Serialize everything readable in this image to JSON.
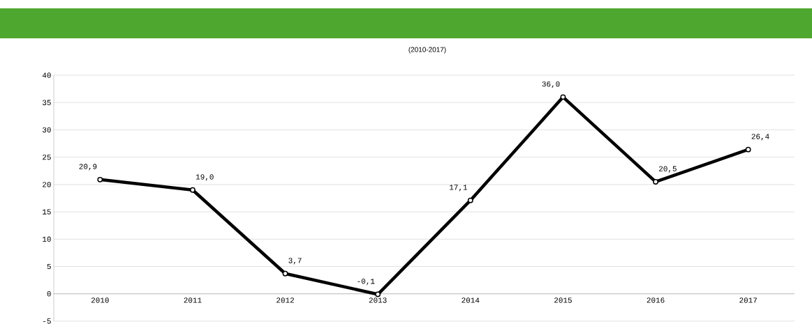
{
  "chart_data": {
    "type": "line",
    "subtitle": "(2010-2017)",
    "categories": [
      "2010",
      "2011",
      "2012",
      "2013",
      "2014",
      "2015",
      "2016",
      "2017"
    ],
    "series": [
      {
        "color": "#000000",
        "values": [
          20.9,
          19.0,
          3.7,
          -0.1,
          17.1,
          36.0,
          20.5,
          26.4
        ],
        "value_labels": [
          "20,9",
          "19,0",
          "3,7",
          "-0,1",
          "17,1",
          "36,0",
          "20,5",
          "26,4"
        ]
      }
    ],
    "ylim": [
      -5,
      40
    ],
    "yticks": [
      -5,
      0,
      5,
      10,
      15,
      20,
      25,
      30,
      35,
      40
    ],
    "grid": "y",
    "marker": "circle",
    "line_style": "solid",
    "legend": false
  }
}
